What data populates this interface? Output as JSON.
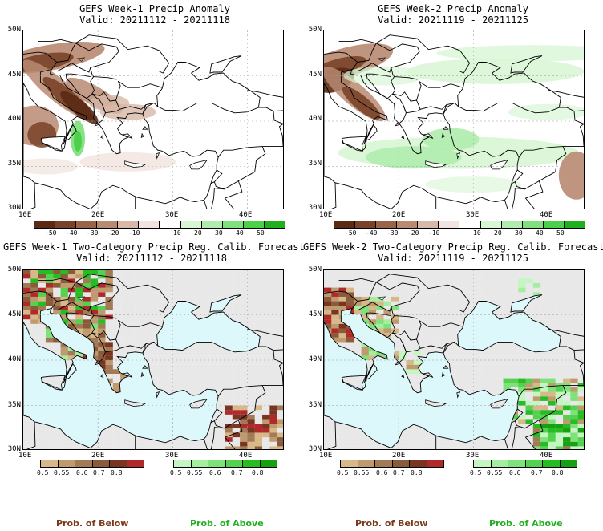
{
  "panels": [
    {
      "title": "GEFS Week-1 Precip Anomaly",
      "valid": "Valid: 20211112 - 20211118"
    },
    {
      "title": "GEFS Week-2 Precip Anomaly",
      "valid": "Valid: 20211119 - 20211125"
    },
    {
      "title": "GEFS Week-1 Two-Category Precip Reg. Calib. Forecast",
      "valid": "Valid: 20211112 - 20211118"
    },
    {
      "title": "GEFS Week-2 Two-Category Precip Reg. Calib. Forecast",
      "valid": "Valid: 20211119 - 20211125"
    }
  ],
  "lat_labels": [
    "50N",
    "45N",
    "40N",
    "35N",
    "30N"
  ],
  "lon_labels": [
    "10E",
    "20E",
    "30E",
    "40E"
  ],
  "anomaly_colorbar": {
    "ticks": [
      "-50",
      "-40",
      "-30",
      "-20",
      "-10",
      "10",
      "20",
      "30",
      "40",
      "50"
    ],
    "colors": [
      "#5a2a14",
      "#7a4228",
      "#9a6448",
      "#b98a72",
      "#d8b8a8",
      "#f1e4de",
      "#ffffff",
      "#d8f6d4",
      "#b0ecae",
      "#80e07e",
      "#4ccf4a",
      "#1fb01d"
    ]
  },
  "below_colorbar": {
    "ticks": [
      "0.5",
      "0.55",
      "0.6",
      "0.7",
      "0.8"
    ],
    "colors": [
      "#d8b888",
      "#bf9a6e",
      "#a37a56",
      "#8a5a3a",
      "#7a3422",
      "#b02a2a"
    ]
  },
  "above_colorbar": {
    "ticks": [
      "0.5",
      "0.55",
      "0.6",
      "0.7",
      "0.8"
    ],
    "colors": [
      "#c4f6c2",
      "#a4eea0",
      "#7ee27a",
      "#52d24e",
      "#26bc22",
      "#16a012"
    ]
  },
  "legend": {
    "below": "Prob. of Below",
    "above": "Prob. of Above"
  },
  "colors": {
    "land": "#ffffff",
    "sea": "#ddf8fb",
    "nodata": "#e8e8e8",
    "below_text": "#7a3a1a",
    "above_text": "#1fb01d"
  }
}
